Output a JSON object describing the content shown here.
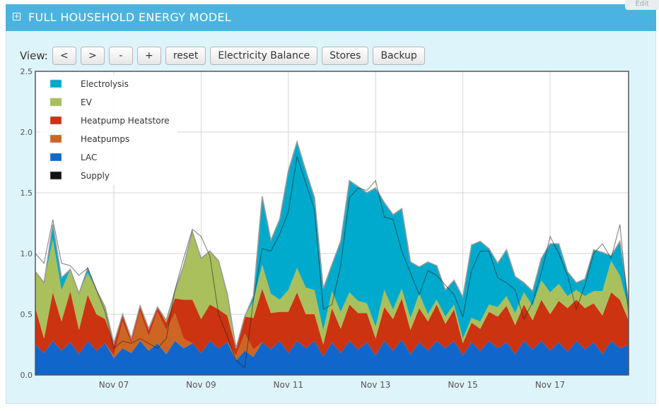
{
  "header": {
    "title": "FULL HOUSEHOLD ENERGY MODEL",
    "edit_label": "Edit"
  },
  "toolbar": {
    "view_label": "View:",
    "buttons": [
      "<",
      ">",
      "-",
      "+",
      "reset",
      "Electricity Balance",
      "Stores",
      "Backup"
    ]
  },
  "chart_data": {
    "type": "area",
    "stacked": true,
    "x_tick_labels": [
      "Nov 07",
      "Nov 09",
      "Nov 11",
      "Nov 13",
      "Nov 15",
      "Nov 17"
    ],
    "x_tick_days": [
      7,
      9,
      11,
      13,
      15,
      17
    ],
    "xlim_days": [
      5.2,
      18.8
    ],
    "ylim": [
      0,
      2.5
    ],
    "y_ticks": [
      0.0,
      0.5,
      1.0,
      1.5,
      2.0,
      2.5
    ],
    "y_tick_labels": [
      "0.0",
      "0.5",
      "1.0",
      "1.5",
      "2.0",
      "2.5"
    ],
    "grid": true,
    "legend_position": "top-left",
    "x_day": [
      5.2,
      5.4,
      5.6,
      5.8,
      6.0,
      6.2,
      6.4,
      6.6,
      6.8,
      7.0,
      7.2,
      7.4,
      7.6,
      7.8,
      8.0,
      8.2,
      8.4,
      8.6,
      8.8,
      9.0,
      9.2,
      9.4,
      9.6,
      9.8,
      10.0,
      10.2,
      10.4,
      10.6,
      10.8,
      11.0,
      11.2,
      11.4,
      11.6,
      11.8,
      12.0,
      12.2,
      12.4,
      12.6,
      12.8,
      13.0,
      13.2,
      13.4,
      13.6,
      13.8,
      14.0,
      14.2,
      14.4,
      14.6,
      14.8,
      15.0,
      15.2,
      15.4,
      15.6,
      15.8,
      16.0,
      16.2,
      16.4,
      16.6,
      16.8,
      17.0,
      17.2,
      17.4,
      17.6,
      17.8,
      18.0,
      18.2,
      18.4,
      18.6,
      18.8
    ],
    "series": [
      {
        "name": "LAC",
        "color": "#1166cc",
        "values": [
          0.25,
          0.18,
          0.28,
          0.2,
          0.27,
          0.17,
          0.28,
          0.2,
          0.26,
          0.14,
          0.22,
          0.18,
          0.28,
          0.2,
          0.26,
          0.17,
          0.28,
          0.22,
          0.26,
          0.18,
          0.28,
          0.22,
          0.27,
          0.12,
          0.2,
          0.15,
          0.27,
          0.21,
          0.28,
          0.18,
          0.28,
          0.22,
          0.28,
          0.15,
          0.27,
          0.18,
          0.28,
          0.21,
          0.27,
          0.16,
          0.28,
          0.2,
          0.29,
          0.17,
          0.27,
          0.2,
          0.28,
          0.22,
          0.28,
          0.16,
          0.27,
          0.2,
          0.28,
          0.22,
          0.27,
          0.17,
          0.28,
          0.21,
          0.28,
          0.2,
          0.27,
          0.19,
          0.28,
          0.21,
          0.27,
          0.17,
          0.28,
          0.22,
          0.25
        ]
      },
      {
        "name": "Heatpumps",
        "color": "#cc6622",
        "values": [
          0,
          0,
          0,
          0,
          0,
          0,
          0,
          0,
          0,
          0.02,
          0.22,
          0.08,
          0.24,
          0.12,
          0.26,
          0.2,
          0.23,
          0.08,
          0,
          0,
          0,
          0,
          0,
          0.04,
          0.14,
          0.06,
          0,
          0,
          0,
          0,
          0,
          0,
          0,
          0,
          0,
          0,
          0,
          0,
          0,
          0,
          0,
          0,
          0,
          0,
          0,
          0,
          0,
          0,
          0,
          0,
          0,
          0,
          0,
          0,
          0,
          0,
          0,
          0,
          0,
          0,
          0,
          0,
          0,
          0,
          0,
          0,
          0,
          0,
          0
        ]
      },
      {
        "name": "Heatpump Heatstore",
        "color": "#cc3311",
        "values": [
          0.3,
          0.12,
          0.4,
          0.24,
          0.42,
          0.2,
          0.38,
          0.3,
          0.2,
          0.1,
          0.06,
          0.04,
          0.05,
          0.06,
          0.04,
          0.06,
          0.12,
          0.32,
          0.36,
          0.28,
          0.3,
          0.32,
          0.22,
          0.06,
          0.14,
          0.26,
          0.44,
          0.3,
          0.24,
          0.34,
          0.4,
          0.28,
          0.22,
          0.1,
          0.28,
          0.2,
          0.3,
          0.3,
          0.24,
          0.14,
          0.28,
          0.26,
          0.34,
          0.2,
          0.28,
          0.24,
          0.3,
          0.2,
          0.26,
          0.1,
          0.16,
          0.18,
          0.24,
          0.26,
          0.3,
          0.24,
          0.3,
          0.24,
          0.34,
          0.3,
          0.34,
          0.36,
          0.34,
          0.34,
          0.32,
          0.32,
          0.4,
          0.4,
          0.2
        ]
      },
      {
        "name": "EV",
        "color": "#a9c05c",
        "values": [
          0.3,
          0.46,
          0.44,
          0.26,
          0.18,
          0.3,
          0.18,
          0.2,
          0.1,
          0,
          0,
          0,
          0,
          0,
          0,
          0.02,
          0.06,
          0.28,
          0.56,
          0.5,
          0.44,
          0.4,
          0.18,
          0,
          0,
          0.14,
          0.2,
          0.16,
          0.1,
          0.18,
          0.2,
          0.22,
          0.2,
          0.12,
          0.14,
          0.14,
          0.1,
          0.1,
          0.08,
          0.1,
          0.14,
          0.08,
          0.08,
          0.1,
          0.12,
          0.06,
          0.04,
          0.06,
          0.04,
          0.04,
          0.04,
          0.06,
          0.06,
          0.08,
          0.08,
          0.1,
          0.1,
          0.12,
          0.16,
          0.18,
          0.14,
          0.1,
          0.08,
          0.1,
          0.1,
          0.2,
          0.26,
          0.2,
          0.1
        ]
      },
      {
        "name": "Electrolysis",
        "color": "#00aacc",
        "values": [
          0,
          0,
          0.12,
          0.1,
          0,
          0,
          0.04,
          0,
          0,
          0,
          0,
          0,
          0,
          0,
          0,
          0,
          0,
          0,
          0,
          0,
          0,
          0,
          0,
          0,
          0,
          0.04,
          0.56,
          0.44,
          0.66,
          0.98,
          1.04,
          0.96,
          0.76,
          0.34,
          0.22,
          0.58,
          0.92,
          0.94,
          0.91,
          1.14,
          0.72,
          0.78,
          0.66,
          0.46,
          0.22,
          0.43,
          0.28,
          0.22,
          0.2,
          0.34,
          0.6,
          0.66,
          0.46,
          0.36,
          0.38,
          0.3,
          0.08,
          0.12,
          0.18,
          0.4,
          0.33,
          0.2,
          0.06,
          0.14,
          0.34,
          0.32,
          0.04,
          0.28,
          0.05
        ]
      }
    ],
    "supply": [
      1.0,
      0.92,
      1.28,
      0.92,
      0.9,
      0.82,
      0.88,
      0.7,
      0.52,
      0.22,
      0.28,
      0.26,
      0.3,
      0.26,
      0.22,
      0.3,
      0.7,
      0.96,
      1.2,
      1.14,
      0.98,
      0.5,
      0.32,
      0.12,
      0.06,
      0.62,
      1.04,
      1.02,
      1.16,
      1.34,
      1.8,
      1.58,
      1.36,
      0.54,
      0.58,
      0.9,
      1.46,
      1.54,
      1.52,
      1.6,
      1.3,
      1.28,
      1.02,
      0.84,
      0.66,
      0.86,
      0.82,
      0.74,
      0.66,
      0.48,
      0.86,
      1.02,
      1.02,
      0.8,
      0.76,
      0.7,
      0.46,
      0.6,
      0.84,
      1.14,
      1.0,
      0.82,
      0.54,
      0.74,
      1.0,
      1.08,
      0.96,
      1.24,
      0.5
    ]
  }
}
